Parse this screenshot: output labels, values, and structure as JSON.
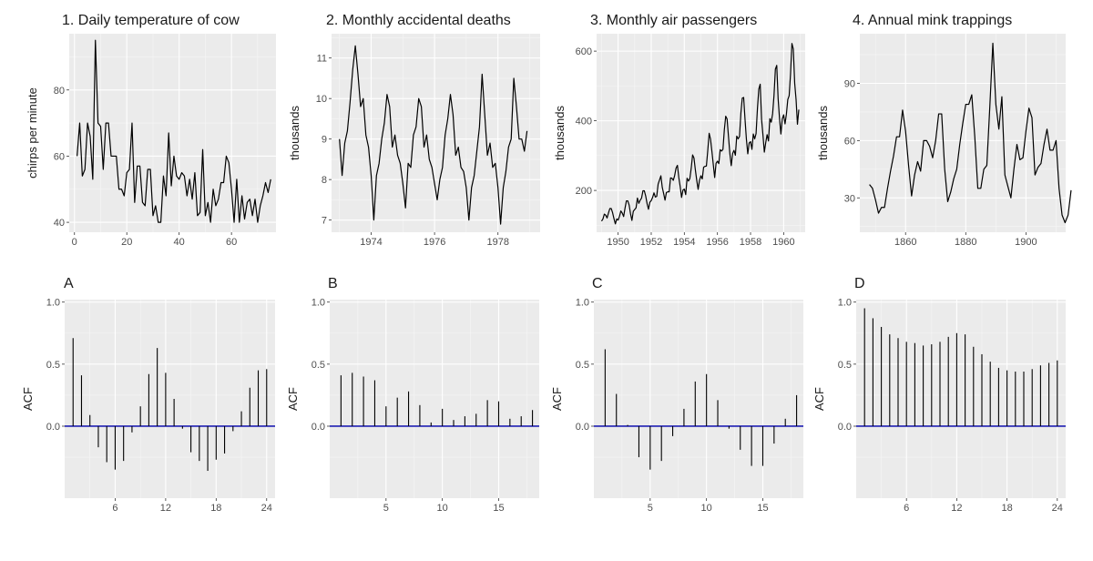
{
  "chart_data": [
    {
      "id": "p1",
      "type": "line",
      "title": "1. Daily temperature of cow",
      "xlabel": "",
      "ylabel": "chirps per minute",
      "xlim": [
        -2,
        77
      ],
      "ylim": [
        37,
        97
      ],
      "xticks": [
        0,
        20,
        40,
        60
      ],
      "xtick_labels": [
        "0",
        "20",
        "40",
        "60"
      ],
      "yticks": [
        40,
        60,
        80
      ],
      "ytick_labels": [
        "40",
        "60",
        "80"
      ],
      "grid": true,
      "series": [
        {
          "x": [
            1,
            2,
            3,
            4,
            5,
            6,
            7,
            8,
            9,
            10,
            11,
            12,
            13,
            14,
            15,
            16,
            17,
            18,
            19,
            20,
            21,
            22,
            23,
            24,
            25,
            26,
            27,
            28,
            29,
            30,
            31,
            32,
            33,
            34,
            35,
            36,
            37,
            38,
            39,
            40,
            41,
            42,
            43,
            44,
            45,
            46,
            47,
            48,
            49,
            50,
            51,
            52,
            53,
            54,
            55,
            56,
            57,
            58,
            59,
            60,
            61,
            62,
            63,
            64,
            65,
            66,
            67,
            68,
            69,
            70,
            71,
            72,
            73,
            74,
            75
          ],
          "y": [
            60,
            70,
            54,
            56,
            70,
            66,
            53,
            95,
            70,
            69,
            56,
            70,
            70,
            60,
            60,
            60,
            50,
            50,
            48,
            55,
            56,
            70,
            46,
            57,
            57,
            46,
            45,
            56,
            56,
            42,
            45,
            40,
            40,
            54,
            48,
            67,
            51,
            60,
            54,
            53,
            55,
            54,
            48,
            53,
            47,
            55,
            42,
            43,
            62,
            42,
            46,
            40,
            50,
            45,
            47,
            52,
            52,
            60,
            58,
            50,
            40,
            53,
            40,
            48,
            41,
            46,
            47,
            42,
            47,
            40,
            45,
            48,
            52,
            49,
            53
          ]
        }
      ]
    },
    {
      "id": "p2",
      "type": "line",
      "title": "2. Monthly accidental deaths",
      "xlabel": "",
      "ylabel": "thousands",
      "xlim": [
        1972.75,
        1979.33
      ],
      "ylim": [
        6.7,
        11.6
      ],
      "xticks": [
        1974,
        1976,
        1978
      ],
      "xtick_labels": [
        "1974",
        "1976",
        "1978"
      ],
      "yticks": [
        7,
        8,
        9,
        10,
        11
      ],
      "ytick_labels": [
        "7",
        "8",
        "9",
        "10",
        "11"
      ],
      "grid": true,
      "series": [
        {
          "x_start": 1973,
          "x_step": 0.08333,
          "y": [
            9.0,
            8.1,
            8.9,
            9.2,
            9.9,
            10.7,
            11.3,
            10.6,
            9.8,
            10.0,
            9.1,
            8.8,
            8.1,
            7.0,
            8.1,
            8.4,
            9.0,
            9.4,
            10.1,
            9.8,
            8.8,
            9.1,
            8.6,
            8.4,
            7.9,
            7.3,
            8.4,
            8.3,
            9.1,
            9.3,
            10.0,
            9.8,
            8.8,
            9.1,
            8.5,
            8.3,
            7.9,
            7.5,
            8.0,
            8.3,
            9.1,
            9.5,
            10.1,
            9.6,
            8.6,
            8.8,
            8.3,
            8.2,
            7.8,
            7.0,
            7.8,
            8.1,
            8.7,
            9.3,
            10.6,
            9.6,
            8.6,
            8.9,
            8.3,
            8.4,
            7.8,
            6.9,
            7.8,
            8.2,
            8.8,
            9.0,
            10.5,
            9.8,
            9.0,
            9.0,
            8.7,
            9.2
          ]
        }
      ]
    },
    {
      "id": "p3",
      "type": "line",
      "title": "3. Monthly air passengers",
      "xlabel": "",
      "ylabel": "thousands",
      "xlim": [
        1948.7,
        1961.3
      ],
      "ylim": [
        80,
        650
      ],
      "xticks": [
        1950,
        1952,
        1954,
        1956,
        1958,
        1960
      ],
      "xtick_labels": [
        "1950",
        "1952",
        "1954",
        "1956",
        "1958",
        "1960"
      ],
      "yticks": [
        200,
        400,
        600
      ],
      "ytick_labels": [
        "200",
        "400",
        "600"
      ],
      "grid": true,
      "series": [
        {
          "x_start": 1949,
          "x_step": 0.08333,
          "y": [
            112,
            118,
            132,
            129,
            121,
            135,
            148,
            148,
            136,
            119,
            104,
            118,
            115,
            126,
            141,
            135,
            125,
            149,
            170,
            170,
            158,
            133,
            114,
            140,
            145,
            150,
            178,
            163,
            172,
            178,
            199,
            199,
            184,
            162,
            146,
            166,
            171,
            180,
            193,
            181,
            183,
            218,
            230,
            242,
            209,
            191,
            172,
            194,
            196,
            196,
            236,
            235,
            229,
            243,
            264,
            272,
            237,
            211,
            180,
            201,
            204,
            188,
            235,
            227,
            234,
            264,
            302,
            293,
            259,
            229,
            203,
            229,
            242,
            233,
            267,
            269,
            270,
            315,
            364,
            347,
            312,
            274,
            237,
            278,
            284,
            277,
            317,
            313,
            318,
            374,
            413,
            405,
            355,
            306,
            271,
            306,
            315,
            301,
            356,
            348,
            355,
            422,
            465,
            467,
            404,
            347,
            305,
            336,
            340,
            318,
            362,
            348,
            363,
            435,
            491,
            505,
            404,
            359,
            310,
            337,
            360,
            342,
            406,
            396,
            420,
            472,
            548,
            559,
            463,
            407,
            362,
            405,
            417,
            391,
            419,
            461,
            472,
            535,
            622,
            606,
            508,
            461,
            390,
            432
          ]
        }
      ]
    },
    {
      "id": "p4",
      "type": "line",
      "title": "4. Annual mink trappings",
      "xlabel": "",
      "ylabel": "thousands",
      "xlim": [
        1844.8,
        1913.2
      ],
      "ylim": [
        12,
        116
      ],
      "xticks": [
        1860,
        1880,
        1900
      ],
      "xtick_labels": [
        "1860",
        "1880",
        "1900"
      ],
      "yticks": [
        30,
        60,
        90
      ],
      "ytick_labels": [
        "30",
        "60",
        "90"
      ],
      "grid": true,
      "series": [
        {
          "x_start": 1848,
          "x_step": 1,
          "y": [
            37,
            35,
            29,
            22,
            25,
            25,
            35,
            44,
            52,
            62,
            62,
            76,
            65,
            47,
            31,
            42,
            49,
            44,
            60,
            60,
            57,
            51,
            60,
            74,
            74,
            45,
            28,
            33,
            40,
            45,
            58,
            69,
            79,
            79,
            84,
            62,
            35,
            35,
            45,
            47,
            78,
            111,
            79,
            66,
            83,
            42,
            36,
            30,
            45,
            58,
            50,
            51,
            65,
            77,
            72,
            42,
            46,
            48,
            58,
            66,
            55,
            55,
            60,
            35,
            21,
            17,
            21,
            34
          ]
        }
      ]
    },
    {
      "id": "pa",
      "type": "bar",
      "title": "A",
      "xlabel": "",
      "ylabel": "ACF",
      "xlim": [
        0,
        25
      ],
      "ylim": [
        -0.58,
        1.02
      ],
      "xticks": [
        6,
        12,
        18,
        24
      ],
      "xtick_labels": [
        "6",
        "12",
        "18",
        "24"
      ],
      "yticks": [
        0,
        0.5,
        1.0
      ],
      "ytick_labels": [
        "0.0",
        "0.5",
        "1.0"
      ],
      "grid": true,
      "lags": [
        1,
        2,
        3,
        4,
        5,
        6,
        7,
        8,
        9,
        10,
        11,
        12,
        13,
        14,
        15,
        16,
        17,
        18,
        19,
        20,
        21,
        22,
        23,
        24
      ],
      "values": [
        0.71,
        0.41,
        0.09,
        -0.17,
        -0.29,
        -0.35,
        -0.28,
        -0.05,
        0.16,
        0.42,
        0.63,
        0.43,
        0.22,
        -0.02,
        -0.21,
        -0.28,
        -0.36,
        -0.27,
        -0.22,
        -0.04,
        0.12,
        0.31,
        0.45,
        0.46
      ]
    },
    {
      "id": "pb",
      "type": "bar",
      "title": "B",
      "xlabel": "",
      "ylabel": "ACF",
      "xlim": [
        0,
        18.6
      ],
      "ylim": [
        -0.58,
        1.02
      ],
      "xticks": [
        5,
        10,
        15
      ],
      "xtick_labels": [
        "5",
        "10",
        "15"
      ],
      "yticks": [
        0,
        0.5,
        1.0
      ],
      "ytick_labels": [
        "0.0",
        "0.5",
        "1.0"
      ],
      "grid": true,
      "lags": [
        1,
        2,
        3,
        4,
        5,
        6,
        7,
        8,
        9,
        10,
        11,
        12,
        13,
        14,
        15,
        16,
        17,
        18
      ],
      "values": [
        0.41,
        0.43,
        0.4,
        0.37,
        0.16,
        0.23,
        0.28,
        0.17,
        0.03,
        0.14,
        0.05,
        0.08,
        0.1,
        0.21,
        0.2,
        0.06,
        0.08,
        0.13
      ]
    },
    {
      "id": "pc",
      "type": "bar",
      "title": "C",
      "xlabel": "",
      "ylabel": "ACF",
      "xlim": [
        0,
        18.6
      ],
      "ylim": [
        -0.58,
        1.02
      ],
      "xticks": [
        5,
        10,
        15
      ],
      "xtick_labels": [
        "5",
        "10",
        "15"
      ],
      "yticks": [
        0,
        0.5,
        1.0
      ],
      "ytick_labels": [
        "0.0",
        "0.5",
        "1.0"
      ],
      "grid": true,
      "lags": [
        1,
        2,
        3,
        4,
        5,
        6,
        7,
        8,
        9,
        10,
        11,
        12,
        13,
        14,
        15,
        16,
        17,
        18
      ],
      "values": [
        0.62,
        0.26,
        0.01,
        -0.25,
        -0.35,
        -0.28,
        -0.08,
        0.14,
        0.36,
        0.42,
        0.21,
        -0.02,
        -0.19,
        -0.32,
        -0.32,
        -0.14,
        0.06,
        0.25
      ]
    },
    {
      "id": "pd",
      "type": "bar",
      "title": "D",
      "xlabel": "",
      "ylabel": "ACF",
      "xlim": [
        0,
        25
      ],
      "ylim": [
        -0.58,
        1.02
      ],
      "xticks": [
        6,
        12,
        18,
        24
      ],
      "xtick_labels": [
        "6",
        "12",
        "18",
        "24"
      ],
      "yticks": [
        0,
        0.5,
        1.0
      ],
      "ytick_labels": [
        "0.0",
        "0.5",
        "1.0"
      ],
      "grid": true,
      "lags": [
        1,
        2,
        3,
        4,
        5,
        6,
        7,
        8,
        9,
        10,
        11,
        12,
        13,
        14,
        15,
        16,
        17,
        18,
        19,
        20,
        21,
        22,
        23,
        24
      ],
      "values": [
        0.95,
        0.87,
        0.8,
        0.74,
        0.71,
        0.68,
        0.67,
        0.65,
        0.66,
        0.68,
        0.72,
        0.75,
        0.74,
        0.64,
        0.58,
        0.52,
        0.47,
        0.45,
        0.44,
        0.44,
        0.46,
        0.49,
        0.51,
        0.53
      ]
    }
  ]
}
